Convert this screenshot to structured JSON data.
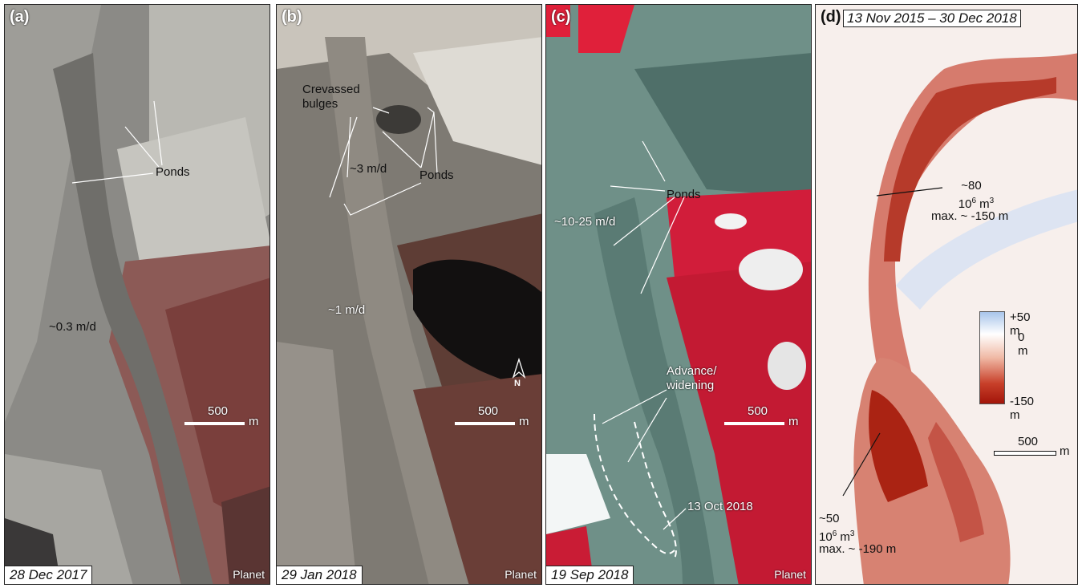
{
  "panels": [
    {
      "label": "(a)",
      "date": "28 Dec 2017",
      "credit": "Planet",
      "annotations": [
        "Ponds",
        "~0.3 m/d"
      ],
      "scale": {
        "value": "500",
        "unit": "m"
      }
    },
    {
      "label": "(b)",
      "date": "29 Jan 2018",
      "credit": "Planet",
      "annotations": [
        "Crevassed",
        "bulges",
        "~3 m/d",
        "Ponds",
        "~1 m/d"
      ],
      "north": "N",
      "scale": {
        "value": "500",
        "unit": "m"
      }
    },
    {
      "label": "(c)",
      "date": "19 Sep 2018",
      "credit": "Planet",
      "annotations": [
        "Ponds",
        "~10-25 m/d",
        "Advance/",
        "widening",
        "13 Oct 2018"
      ],
      "scale": {
        "value": "500",
        "unit": "m"
      }
    },
    {
      "label": "(d)",
      "date_range": "13 Nov 2015 – 30 Dec 2018",
      "annotations": {
        "upper": {
          "volume": "~80",
          "unit_base": "10",
          "unit_exp": "6",
          "unit_rest": " m",
          "unit_exp2": "3",
          "max": "max. ~ -150 m"
        },
        "lower": {
          "volume": "~50",
          "unit_base": "10",
          "unit_exp": "6",
          "unit_rest": " m",
          "unit_exp2": "3",
          "max": "max. ~ -190 m"
        }
      },
      "legend": {
        "top": "+50 m",
        "mid": "0 m",
        "bottom": "-150 m"
      },
      "scale": {
        "value": "500",
        "unit": "m"
      }
    }
  ]
}
